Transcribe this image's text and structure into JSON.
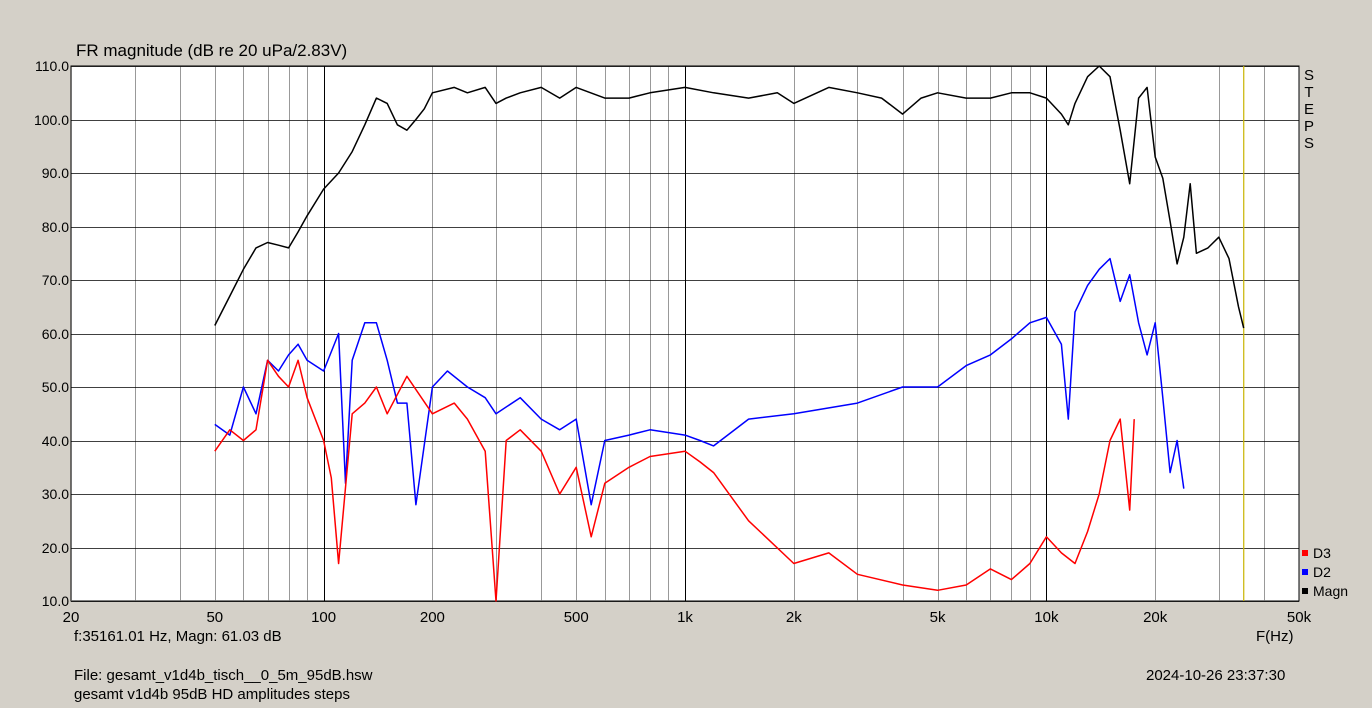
{
  "chart_data": {
    "type": "line",
    "title": "FR magnitude (dB re 20 uPa/2.83V)",
    "xlabel": "F(Hz)",
    "xscale": "log",
    "xlim": [
      20,
      50000
    ],
    "ylim": [
      10,
      110
    ],
    "grid": true,
    "x_ticks": [
      20,
      50,
      100,
      200,
      500,
      1000,
      2000,
      5000,
      10000,
      20000,
      50000
    ],
    "x_tick_labels": [
      "20",
      "50",
      "100",
      "200",
      "500",
      "1k",
      "2k",
      "5k",
      "10k",
      "20k",
      "50k"
    ],
    "y_ticks": [
      10,
      20,
      30,
      40,
      50,
      60,
      70,
      80,
      90,
      100,
      110
    ],
    "y_tick_labels": [
      "10.0",
      "20.0",
      "30.0",
      "40.0",
      "50.0",
      "60.0",
      "70.0",
      "80.0",
      "90.0",
      "100.0",
      "110.0"
    ],
    "side_label": "STEPS",
    "legend_position": "bottom-right",
    "cursor_x": 35161.01,
    "series": [
      {
        "name": "Magn",
        "color": "#000000",
        "points": [
          [
            50,
            61.5
          ],
          [
            55,
            67
          ],
          [
            60,
            72
          ],
          [
            65,
            76
          ],
          [
            70,
            77
          ],
          [
            75,
            76.5
          ],
          [
            80,
            76
          ],
          [
            85,
            79
          ],
          [
            90,
            82
          ],
          [
            100,
            87
          ],
          [
            110,
            90
          ],
          [
            120,
            94
          ],
          [
            130,
            99
          ],
          [
            140,
            104
          ],
          [
            150,
            103
          ],
          [
            160,
            99
          ],
          [
            170,
            98
          ],
          [
            180,
            100
          ],
          [
            190,
            102
          ],
          [
            200,
            105
          ],
          [
            230,
            106
          ],
          [
            250,
            105
          ],
          [
            280,
            106
          ],
          [
            300,
            103
          ],
          [
            320,
            104
          ],
          [
            350,
            105
          ],
          [
            400,
            106
          ],
          [
            450,
            104
          ],
          [
            500,
            106
          ],
          [
            600,
            104
          ],
          [
            700,
            104
          ],
          [
            800,
            105
          ],
          [
            1000,
            106
          ],
          [
            1200,
            105
          ],
          [
            1500,
            104
          ],
          [
            1800,
            105
          ],
          [
            2000,
            103
          ],
          [
            2500,
            106
          ],
          [
            3000,
            105
          ],
          [
            3500,
            104
          ],
          [
            4000,
            101
          ],
          [
            4500,
            104
          ],
          [
            5000,
            105
          ],
          [
            6000,
            104
          ],
          [
            7000,
            104
          ],
          [
            8000,
            105
          ],
          [
            9000,
            105
          ],
          [
            10000,
            104
          ],
          [
            11000,
            101
          ],
          [
            11500,
            99
          ],
          [
            12000,
            103
          ],
          [
            13000,
            108
          ],
          [
            14000,
            110
          ],
          [
            15000,
            108
          ],
          [
            16000,
            98
          ],
          [
            17000,
            88
          ],
          [
            18000,
            104
          ],
          [
            19000,
            106
          ],
          [
            20000,
            93
          ],
          [
            21000,
            89
          ],
          [
            22000,
            81
          ],
          [
            23000,
            73
          ],
          [
            24000,
            78
          ],
          [
            25000,
            88
          ],
          [
            26000,
            75
          ],
          [
            28000,
            76
          ],
          [
            30000,
            78
          ],
          [
            32000,
            74
          ],
          [
            34000,
            65
          ],
          [
            35161,
            61
          ]
        ]
      },
      {
        "name": "D2",
        "color": "#0000ff",
        "points": [
          [
            50,
            43
          ],
          [
            55,
            41
          ],
          [
            60,
            50
          ],
          [
            65,
            45
          ],
          [
            70,
            55
          ],
          [
            75,
            53
          ],
          [
            80,
            56
          ],
          [
            85,
            58
          ],
          [
            90,
            55
          ],
          [
            100,
            53
          ],
          [
            110,
            60
          ],
          [
            115,
            32
          ],
          [
            120,
            55
          ],
          [
            130,
            62
          ],
          [
            140,
            62
          ],
          [
            150,
            55
          ],
          [
            160,
            47
          ],
          [
            170,
            47
          ],
          [
            180,
            28
          ],
          [
            200,
            50
          ],
          [
            220,
            53
          ],
          [
            250,
            50
          ],
          [
            280,
            48
          ],
          [
            300,
            45
          ],
          [
            350,
            48
          ],
          [
            400,
            44
          ],
          [
            450,
            42
          ],
          [
            500,
            44
          ],
          [
            550,
            28
          ],
          [
            600,
            40
          ],
          [
            700,
            41
          ],
          [
            800,
            42
          ],
          [
            1000,
            41
          ],
          [
            1100,
            40
          ],
          [
            1200,
            39
          ],
          [
            1500,
            44
          ],
          [
            2000,
            45
          ],
          [
            3000,
            47
          ],
          [
            4000,
            50
          ],
          [
            5000,
            50
          ],
          [
            6000,
            54
          ],
          [
            7000,
            56
          ],
          [
            8000,
            59
          ],
          [
            9000,
            62
          ],
          [
            10000,
            63
          ],
          [
            11000,
            58
          ],
          [
            11500,
            44
          ],
          [
            12000,
            64
          ],
          [
            13000,
            69
          ],
          [
            14000,
            72
          ],
          [
            15000,
            74
          ],
          [
            16000,
            66
          ],
          [
            17000,
            71
          ],
          [
            18000,
            62
          ],
          [
            19000,
            56
          ],
          [
            20000,
            62
          ],
          [
            21000,
            48
          ],
          [
            22000,
            34
          ],
          [
            23000,
            40
          ],
          [
            24000,
            31
          ]
        ]
      },
      {
        "name": "D3",
        "color": "#ff0000",
        "points": [
          [
            50,
            38
          ],
          [
            55,
            42
          ],
          [
            60,
            40
          ],
          [
            65,
            42
          ],
          [
            70,
            55
          ],
          [
            75,
            52
          ],
          [
            80,
            50
          ],
          [
            85,
            55
          ],
          [
            90,
            48
          ],
          [
            100,
            40
          ],
          [
            105,
            33
          ],
          [
            110,
            17
          ],
          [
            120,
            45
          ],
          [
            130,
            47
          ],
          [
            140,
            50
          ],
          [
            150,
            45
          ],
          [
            170,
            52
          ],
          [
            200,
            45
          ],
          [
            230,
            47
          ],
          [
            250,
            44
          ],
          [
            280,
            38
          ],
          [
            300,
            10
          ],
          [
            320,
            40
          ],
          [
            350,
            42
          ],
          [
            400,
            38
          ],
          [
            450,
            30
          ],
          [
            500,
            35
          ],
          [
            550,
            22
          ],
          [
            600,
            32
          ],
          [
            700,
            35
          ],
          [
            800,
            37
          ],
          [
            1000,
            38
          ],
          [
            1100,
            36
          ],
          [
            1200,
            34
          ],
          [
            1500,
            25
          ],
          [
            2000,
            17
          ],
          [
            2500,
            19
          ],
          [
            3000,
            15
          ],
          [
            4000,
            13
          ],
          [
            5000,
            12
          ],
          [
            6000,
            13
          ],
          [
            7000,
            16
          ],
          [
            8000,
            14
          ],
          [
            9000,
            17
          ],
          [
            10000,
            22
          ],
          [
            11000,
            19
          ],
          [
            12000,
            17
          ],
          [
            13000,
            23
          ],
          [
            14000,
            30
          ],
          [
            15000,
            40
          ],
          [
            16000,
            44
          ],
          [
            17000,
            27
          ],
          [
            17500,
            44
          ]
        ]
      }
    ]
  },
  "readout": "f:35161.01 Hz, Magn: 61.03 dB",
  "file_label": "File: gesamt_v1d4b_tisch__0_5m_95dB.hsw",
  "description": "gesamt v1d4b 95dB HD amplitudes steps",
  "timestamp": "2024-10-26 23:37:30"
}
